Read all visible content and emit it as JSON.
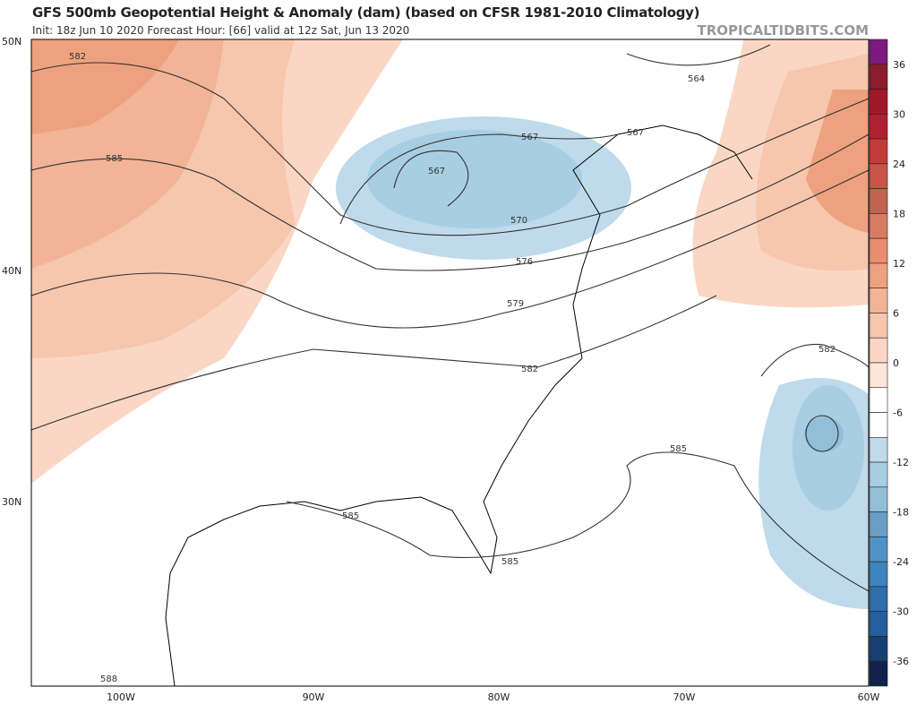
{
  "header": {
    "title": "GFS 500mb Geopotential Height & Anomaly (dam) (based on CFSR 1981-2010 Climatology)",
    "subtitle": "Init: 18z Jun 10 2020   Forecast Hour: [66]   valid at 12z Sat, Jun 13 2020",
    "brand": "TROPICALTIDBITS.COM"
  },
  "axes": {
    "lat_labels": [
      "50N",
      "40N",
      "30N"
    ],
    "lon_labels": [
      "100W",
      "90W",
      "80W",
      "70W",
      "60W"
    ]
  },
  "colorbar": {
    "labels": [
      "36",
      "30",
      "24",
      "18",
      "12",
      "6",
      "0",
      "-6",
      "-12",
      "-18",
      "-24",
      "-30",
      "-36"
    ],
    "colors": [
      "#7b1a80",
      "#8c1b2c",
      "#a0192b",
      "#b0212f",
      "#c23b3a",
      "#c85548",
      "#c0644f",
      "#d97c63",
      "#e88d6e",
      "#eda17f",
      "#f2b396",
      "#f6c6ad",
      "#fad7c4",
      "#fde5d8",
      "#ffffff",
      "#ffffff",
      "#bfdaea",
      "#a8cee3",
      "#92bed8",
      "#6a9ec4",
      "#4f93c6",
      "#3d83bd",
      "#2f6dab",
      "#245e9e",
      "#173f72",
      "#12224f"
    ]
  },
  "contour_labels": [
    "582",
    "585",
    "564",
    "567",
    "567",
    "567",
    "570",
    "576",
    "579",
    "582",
    "582",
    "585",
    "585",
    "585",
    "588"
  ],
  "colors": {
    "warm": "#f4bd9f",
    "warm2": "#eda07f",
    "cold": "#a8cee3",
    "cold2": "#92bed8",
    "contour": "#333333"
  }
}
